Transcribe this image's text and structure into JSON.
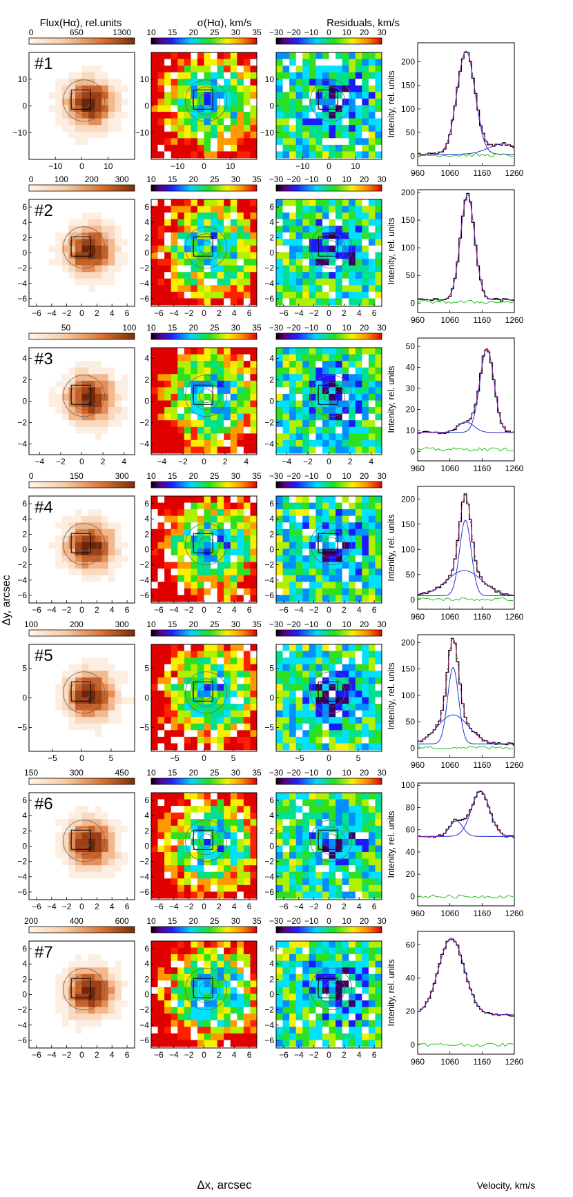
{
  "figure": {
    "column_titles": [
      "Flux(Hα), rel.units",
      "σ(Hα), km/s",
      "Residuals, km/s"
    ],
    "ylabel_map": "Δy, arcsec",
    "xlabel_map": "Δx, arcsec",
    "ylabel_profile": "Intenity, rel. units",
    "xlabel_profile": "Velocity, km/s",
    "sigma_colorbar_ticks": [
      "10",
      "15",
      "20",
      "25",
      "30",
      "35"
    ],
    "resid_colorbar_ticks": [
      "−30",
      "−20",
      "−10",
      "0",
      "10",
      "20",
      "30"
    ],
    "profile_x_ticks": [
      "960",
      "1060",
      "1160",
      "1260"
    ],
    "colors": {
      "flux_dark": "#8b3a10",
      "fit": "#e0208c",
      "component": "#1f2fd0",
      "residual": "#22c41a",
      "data": "#000000"
    }
  },
  "rows": [
    {
      "label": "#1",
      "flux_ticks": [
        "0",
        "650",
        "1300"
      ],
      "map_ticks": [
        "−10",
        "0",
        "10"
      ],
      "map_range": 20,
      "profile": {
        "y_ticks": [
          "0",
          "50",
          "100",
          "150",
          "200"
        ],
        "y_max": 240,
        "components": [
          {
            "center": 1110,
            "sigma": 28,
            "amp": 218
          },
          {
            "center": 1225,
            "sigma": 45,
            "amp": 22
          }
        ],
        "baseline": 4,
        "residual_level": 2
      }
    },
    {
      "label": "#2",
      "flux_ticks": [
        "0",
        "100",
        "200",
        "300"
      ],
      "map_ticks": [
        "−6",
        "−4",
        "−2",
        "0",
        "2",
        "4",
        "6"
      ],
      "map_range": 7,
      "profile": {
        "y_ticks": [
          "0",
          "50",
          "100",
          "150",
          "200"
        ],
        "y_max": 205,
        "components": [
          {
            "center": 1115,
            "sigma": 22,
            "amp": 190
          }
        ],
        "baseline": 6,
        "residual_level": 2
      }
    },
    {
      "label": "#3",
      "flux_ticks": [
        "50",
        "100"
      ],
      "map_ticks": [
        "−4",
        "−2",
        "0",
        "2",
        "4"
      ],
      "map_range": 5,
      "profile": {
        "y_ticks": [
          "0",
          "10",
          "20",
          "30",
          "40",
          "50"
        ],
        "y_max": 54,
        "components": [
          {
            "center": 1175,
            "sigma": 22,
            "amp": 40
          },
          {
            "center": 1110,
            "sigma": 25,
            "amp": 5
          }
        ],
        "baseline": 9,
        "residual_level": 1
      }
    },
    {
      "label": "#4",
      "flux_ticks": [
        "0",
        "150",
        "300"
      ],
      "map_ticks": [
        "−6",
        "−4",
        "−2",
        "0",
        "2",
        "4",
        "6"
      ],
      "map_range": 7,
      "profile": {
        "y_ticks": [
          "0",
          "50",
          "100",
          "150",
          "200"
        ],
        "y_max": 225,
        "components": [
          {
            "center": 1108,
            "sigma": 18,
            "amp": 150
          },
          {
            "center": 1105,
            "sigma": 55,
            "amp": 50
          }
        ],
        "baseline": 8,
        "residual_level": 1
      }
    },
    {
      "label": "#5",
      "flux_ticks": [
        "100",
        "200",
        "300"
      ],
      "map_ticks": [
        "−5",
        "0",
        "5"
      ],
      "map_range": 9,
      "profile": {
        "y_ticks": [
          "0",
          "50",
          "100",
          "150",
          "200"
        ],
        "y_max": 215,
        "components": [
          {
            "center": 1070,
            "sigma": 17,
            "amp": 145
          },
          {
            "center": 1070,
            "sigma": 48,
            "amp": 55
          }
        ],
        "baseline": 8,
        "residual_level": 1
      }
    },
    {
      "label": "#6",
      "flux_ticks": [
        "150",
        "300",
        "450"
      ],
      "map_ticks": [
        "−6",
        "−4",
        "−2",
        "0",
        "2",
        "4",
        "6"
      ],
      "map_range": 7,
      "profile": {
        "y_ticks": [
          "0",
          "20",
          "40",
          "60",
          "80",
          "100"
        ],
        "y_max": 102,
        "components": [
          {
            "center": 1155,
            "sigma": 28,
            "amp": 41
          },
          {
            "center": 1080,
            "sigma": 20,
            "amp": 14
          }
        ],
        "baseline": 54,
        "residual_level": 0
      }
    },
    {
      "label": "#7",
      "flux_ticks": [
        "200",
        "400",
        "600"
      ],
      "map_ticks": [
        "−6",
        "−4",
        "−2",
        "0",
        "2",
        "4",
        "6"
      ],
      "map_range": 7,
      "profile": {
        "y_ticks": [
          "0",
          "20",
          "40",
          "60"
        ],
        "y_max": 68,
        "components": [
          {
            "center": 1065,
            "sigma": 40,
            "amp": 46
          }
        ],
        "baseline": 18,
        "residual_level": 0
      }
    }
  ]
}
